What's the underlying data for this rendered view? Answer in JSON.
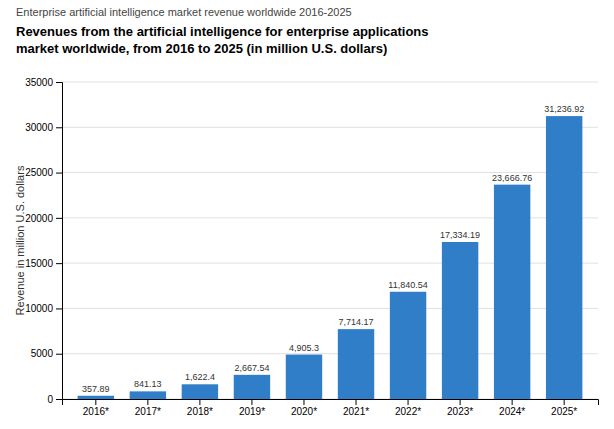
{
  "chart_data": {
    "type": "bar",
    "subtitle": "Enterprise artificial intelligence market revenue worldwide 2016-2025",
    "title": "Revenues from the artificial intelligence for enterprise applications\nmarket worldwide, from 2016 to 2025 (in million U.S. dollars)",
    "ylabel": "Revenue in million U.S. dollars",
    "categories": [
      "2016*",
      "2017*",
      "2018*",
      "2019*",
      "2020*",
      "2021*",
      "2022*",
      "2023*",
      "2024*",
      "2025*"
    ],
    "values": [
      357.89,
      841.13,
      1622.4,
      2667.54,
      4905.3,
      7714.17,
      11840.54,
      17334.19,
      23666.76,
      31236.92
    ],
    "value_labels": [
      "357.89",
      "841.13",
      "1,622.4",
      "2,667.54",
      "4,905.3",
      "7,714.17",
      "11,840.54",
      "17,334.19",
      "23,666.76",
      "31,236.92"
    ],
    "data_labels": true,
    "color": "#2f7ec7",
    "ylim": [
      0,
      35000
    ],
    "yticks": [
      0,
      5000,
      10000,
      15000,
      20000,
      25000,
      30000,
      35000
    ],
    "grid": true
  }
}
